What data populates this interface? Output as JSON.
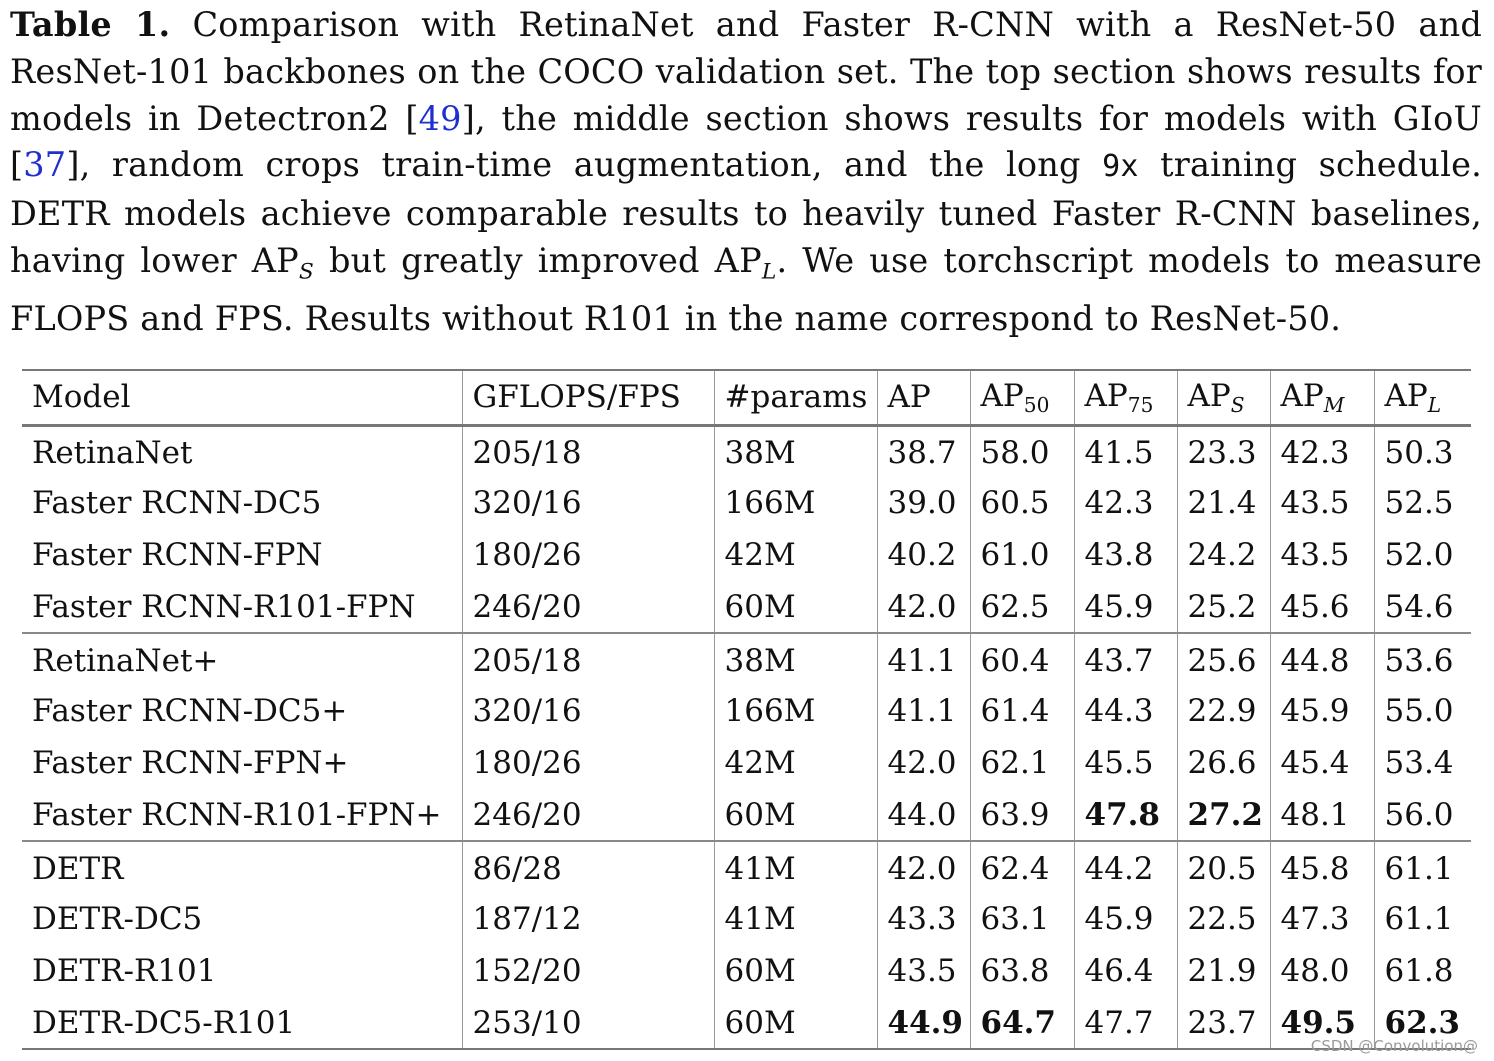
{
  "caption": {
    "label": "Table 1.",
    "part1": " Comparison with RetinaNet and Faster R-CNN with a ResNet-50 and ResNet-101 backbones on the COCO validation set. The top section shows results for models in Detectron2 [",
    "cite1": "49",
    "part2": "], the middle section shows results for models with GIoU [",
    "cite2": "37",
    "part3": "], random crops train-time augmentation, and the long ",
    "mono": "9x",
    "part4": " training schedule. DETR models achieve comparable results to heavily tuned Faster R-CNN baselines, having lower AP",
    "sub_s": "S",
    "part5": " but greatly improved AP",
    "sub_l": "L",
    "part6": ". We use torchscript models to measure FLOPS and FPS. Results without R101 in the name correspond to ResNet-50."
  },
  "table": {
    "headers": {
      "model": "Model",
      "gflops": "GFLOPS/FPS",
      "params": "#params",
      "ap": "AP",
      "ap50_base": "AP",
      "ap50_sub": "50",
      "ap75_base": "AP",
      "ap75_sub": "75",
      "aps_base": "AP",
      "aps_sub": "S",
      "apm_base": "AP",
      "apm_sub": "M",
      "apl_base": "AP",
      "apl_sub": "L"
    },
    "sections": [
      {
        "rows": [
          {
            "model": "RetinaNet",
            "gflops": "205/18",
            "params": "38M",
            "ap": "38.7",
            "ap50": "58.0",
            "ap75": "41.5",
            "aps": "23.3",
            "apm": "42.3",
            "apl": "50.3"
          },
          {
            "model": "Faster RCNN-DC5",
            "gflops": "320/16",
            "params": "166M",
            "ap": "39.0",
            "ap50": "60.5",
            "ap75": "42.3",
            "aps": "21.4",
            "apm": "43.5",
            "apl": "52.5"
          },
          {
            "model": "Faster RCNN-FPN",
            "gflops": "180/26",
            "params": "42M",
            "ap": "40.2",
            "ap50": "61.0",
            "ap75": "43.8",
            "aps": "24.2",
            "apm": "43.5",
            "apl": "52.0"
          },
          {
            "model": "Faster RCNN-R101-FPN",
            "gflops": "246/20",
            "params": "60M",
            "ap": "42.0",
            "ap50": "62.5",
            "ap75": "45.9",
            "aps": "25.2",
            "apm": "45.6",
            "apl": "54.6"
          }
        ]
      },
      {
        "rows": [
          {
            "model": "RetinaNet+",
            "gflops": "205/18",
            "params": "38M",
            "ap": "41.1",
            "ap50": "60.4",
            "ap75": "43.7",
            "aps": "25.6",
            "apm": "44.8",
            "apl": "53.6"
          },
          {
            "model": "Faster RCNN-DC5+",
            "gflops": "320/16",
            "params": "166M",
            "ap": "41.1",
            "ap50": "61.4",
            "ap75": "44.3",
            "aps": "22.9",
            "apm": "45.9",
            "apl": "55.0"
          },
          {
            "model": "Faster RCNN-FPN+",
            "gflops": "180/26",
            "params": "42M",
            "ap": "42.0",
            "ap50": "62.1",
            "ap75": "45.5",
            "aps": "26.6",
            "apm": "45.4",
            "apl": "53.4"
          },
          {
            "model": "Faster RCNN-R101-FPN+",
            "gflops": "246/20",
            "params": "60M",
            "ap": "44.0",
            "ap50": "63.9",
            "ap75": "47.8",
            "aps": "27.2",
            "apm": "48.1",
            "apl": "56.0",
            "bold": [
              "ap75",
              "aps"
            ]
          }
        ]
      },
      {
        "rows": [
          {
            "model": "DETR",
            "gflops": "86/28",
            "params": "41M",
            "ap": "42.0",
            "ap50": "62.4",
            "ap75": "44.2",
            "aps": "20.5",
            "apm": "45.8",
            "apl": "61.1"
          },
          {
            "model": "DETR-DC5",
            "gflops": "187/12",
            "params": "41M",
            "ap": "43.3",
            "ap50": "63.1",
            "ap75": "45.9",
            "aps": "22.5",
            "apm": "47.3",
            "apl": "61.1"
          },
          {
            "model": "DETR-R101",
            "gflops": "152/20",
            "params": "60M",
            "ap": "43.5",
            "ap50": "63.8",
            "ap75": "46.4",
            "aps": "21.9",
            "apm": "48.0",
            "apl": "61.8"
          },
          {
            "model": "DETR-DC5-R101",
            "gflops": "253/10",
            "params": "60M",
            "ap": "44.9",
            "ap50": "64.7",
            "ap75": "47.7",
            "aps": "23.7",
            "apm": "49.5",
            "apl": "62.3",
            "bold": [
              "ap",
              "ap50",
              "apm",
              "apl"
            ]
          }
        ]
      }
    ]
  },
  "watermark": "CSDN @Convolution@"
}
